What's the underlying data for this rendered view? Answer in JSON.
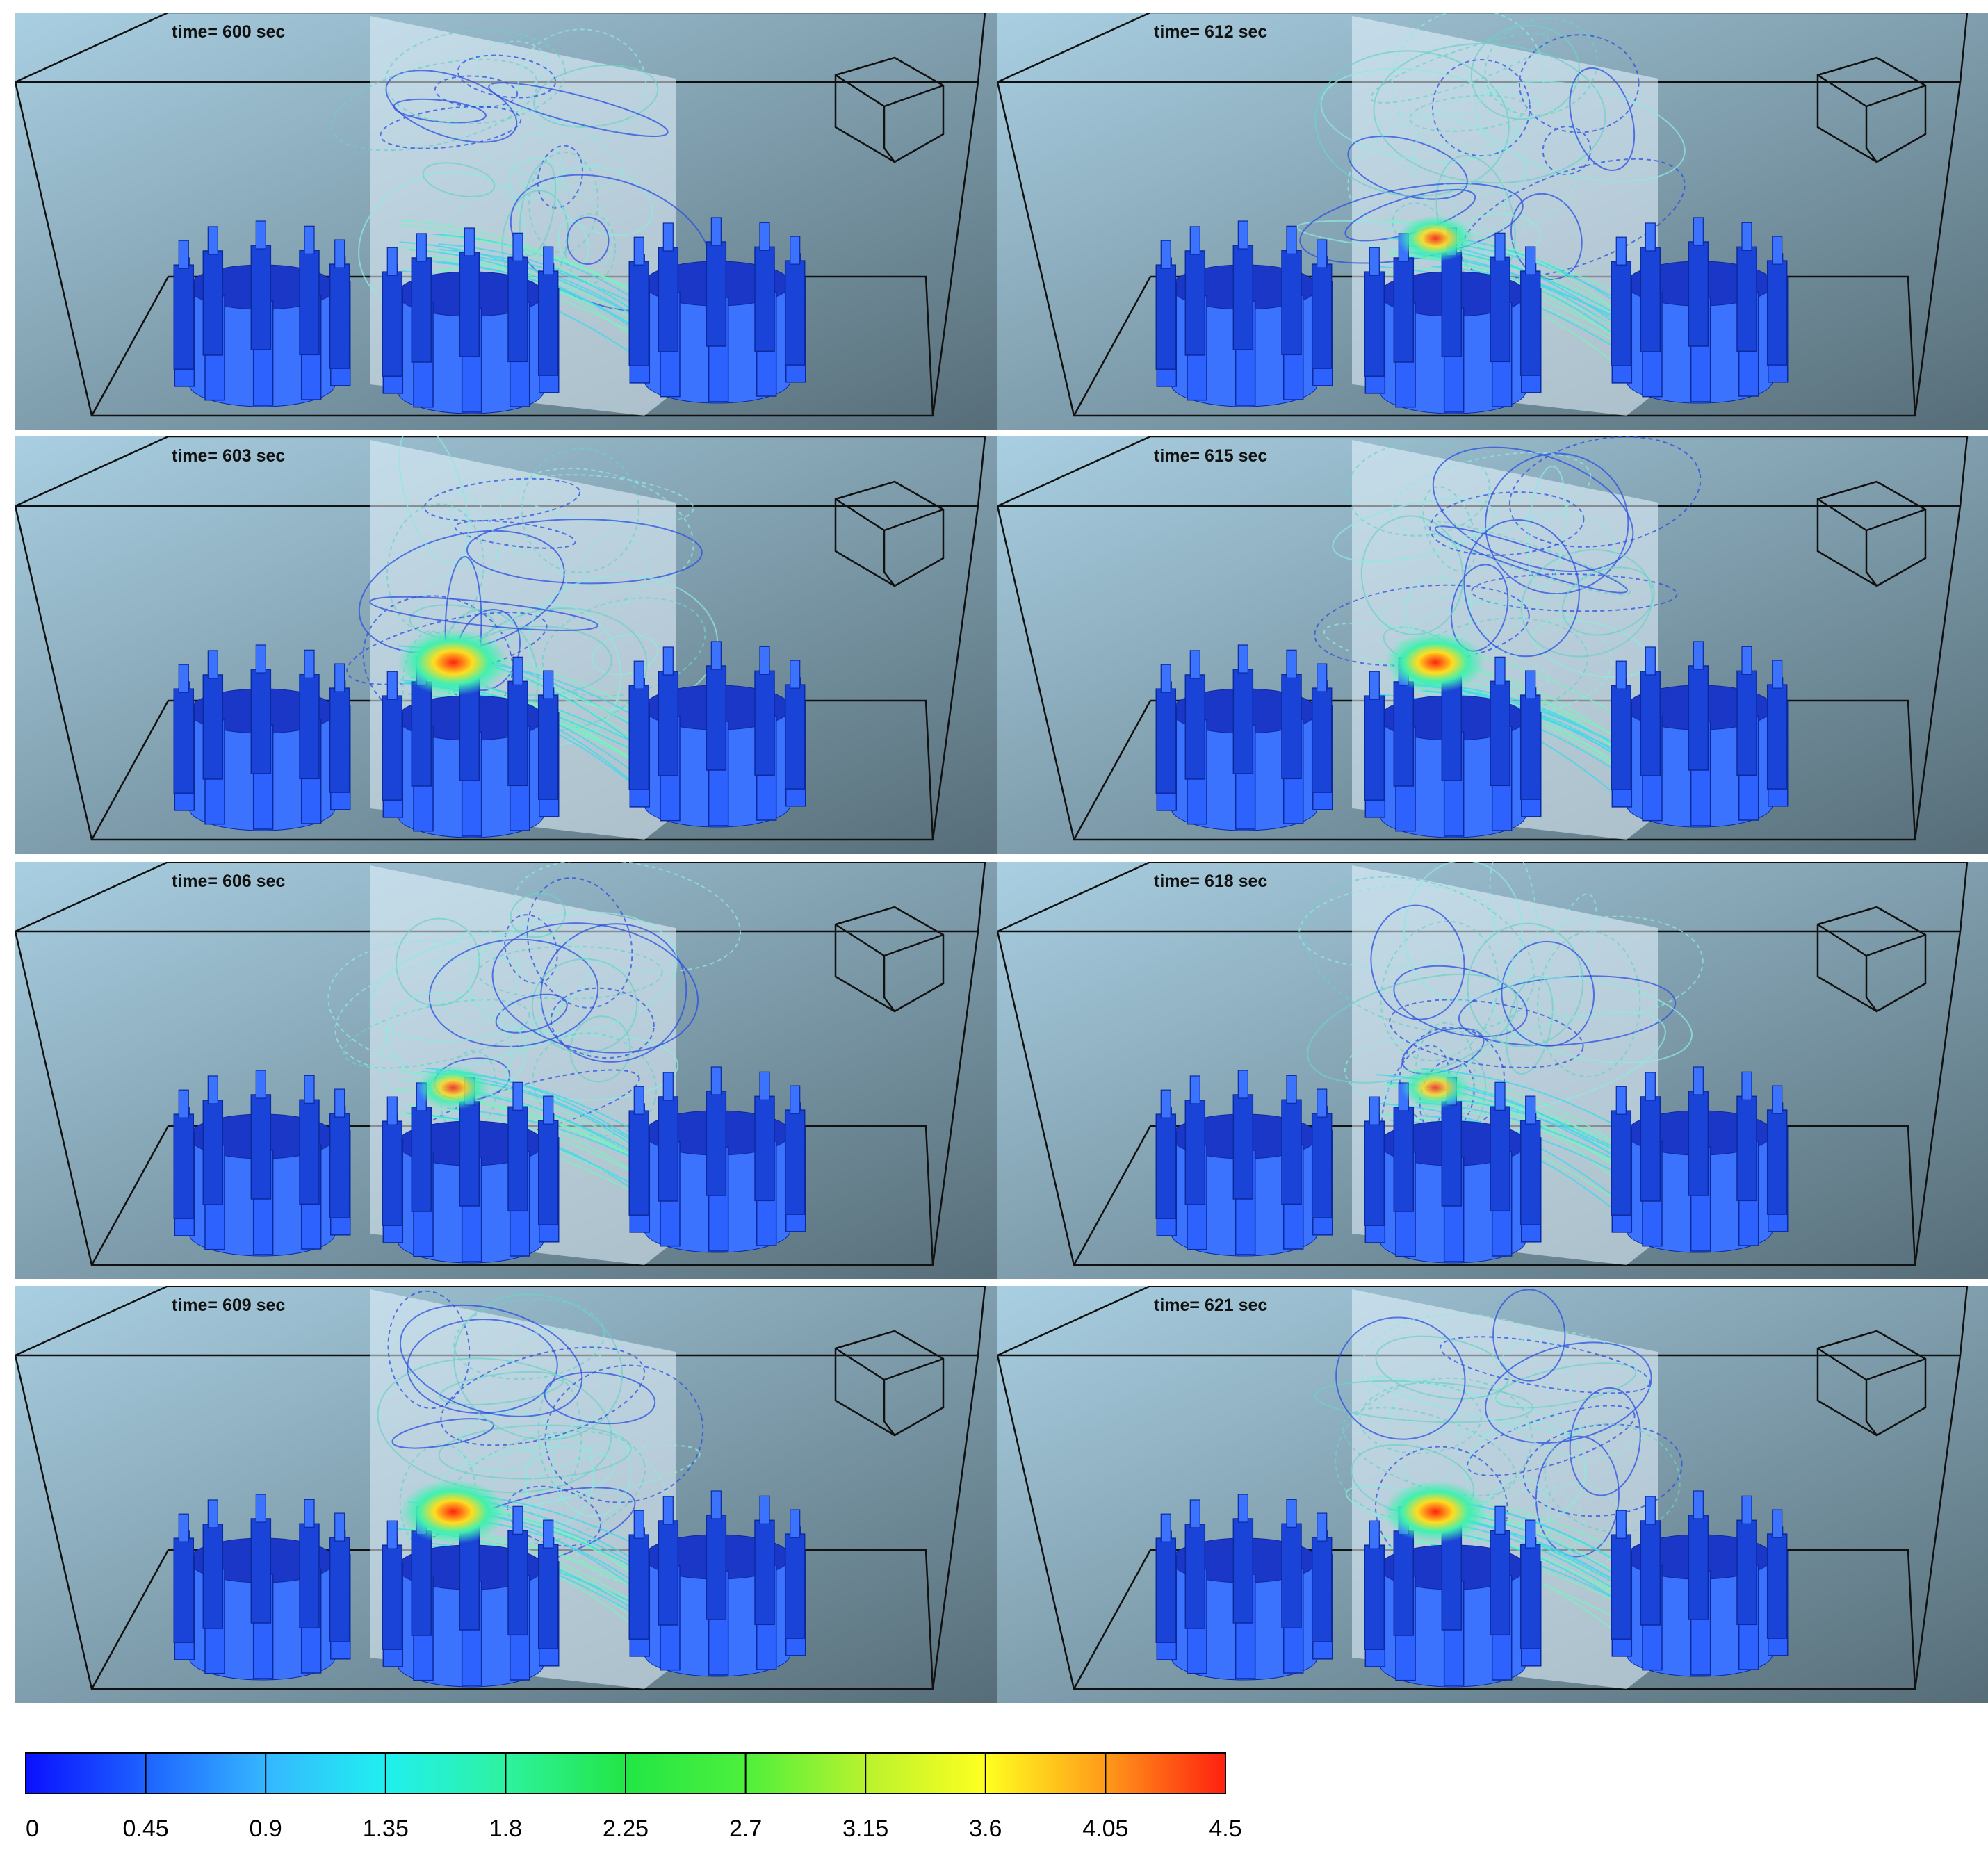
{
  "panels": [
    {
      "time_label": "time= 600 sec",
      "hotspot_level": 0.0
    },
    {
      "time_label": "time= 612 sec",
      "hotspot_level": 0.55
    },
    {
      "time_label": "time= 603 sec",
      "hotspot_level": 1.0
    },
    {
      "time_label": "time= 615 sec",
      "hotspot_level": 0.85
    },
    {
      "time_label": "time= 606 sec",
      "hotspot_level": 0.5
    },
    {
      "time_label": "time= 618 sec",
      "hotspot_level": 0.45
    },
    {
      "time_label": "time= 609 sec",
      "hotspot_level": 0.95
    },
    {
      "time_label": "time= 621 sec",
      "hotspot_level": 0.9
    }
  ],
  "colorbar": {
    "ticks": [
      "0",
      "0.45",
      "0.9",
      "1.35",
      "1.8",
      "2.25",
      "2.7",
      "3.15",
      "3.6",
      "4.05",
      "4.5"
    ],
    "colors": [
      "#0a10ff",
      "#1e63ff",
      "#35b6ff",
      "#20f0f0",
      "#2ef2a0",
      "#22e645",
      "#4df03c",
      "#b8f22e",
      "#ffff20",
      "#ff9a1a",
      "#ff2010"
    ]
  },
  "colors": {
    "background_top": "#a9cfe2",
    "background_bottom": "#566d78",
    "solid": "#1f4ef0",
    "solid_light": "#3b73ff",
    "plane": "#e8f6ff"
  }
}
